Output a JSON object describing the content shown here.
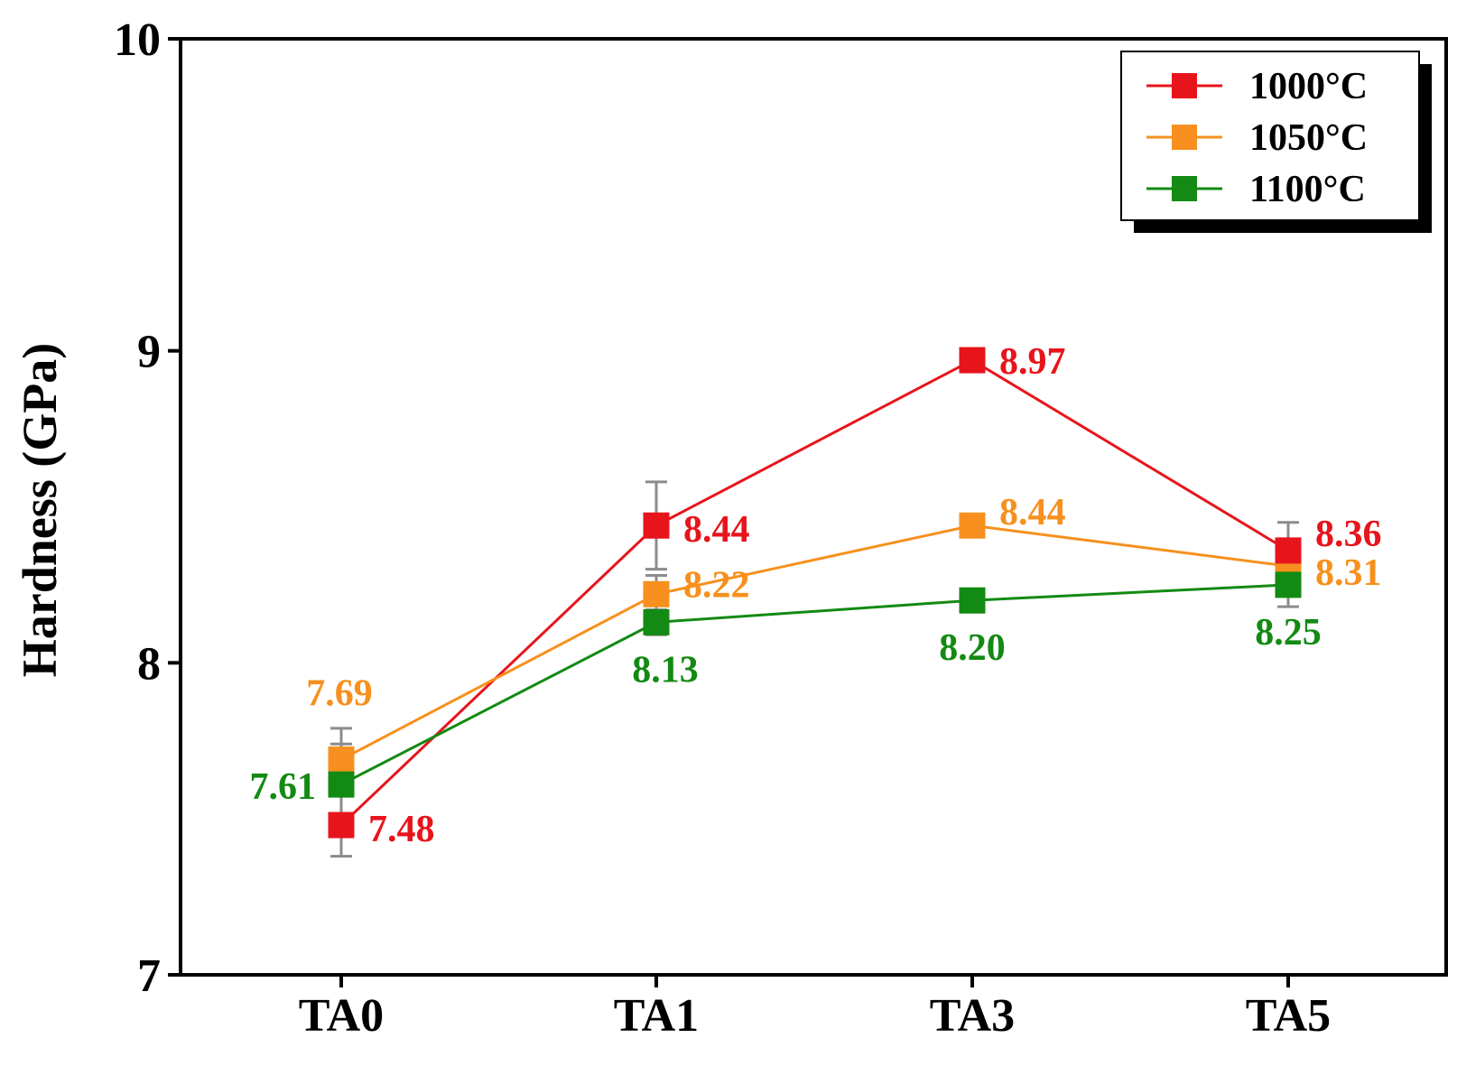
{
  "chart_data": {
    "type": "line",
    "title": "",
    "xlabel": "",
    "ylabel": "Hardness (GPa)",
    "ylim": [
      7,
      10
    ],
    "yticks": [
      "7",
      "8",
      "9",
      "10"
    ],
    "categories": [
      "TA0",
      "TA1",
      "TA3",
      "TA5"
    ],
    "grid": false,
    "legend_position": "top-right",
    "series": [
      {
        "name": "1000°C",
        "color": "#e8141c",
        "values": [
          7.48,
          8.44,
          8.97,
          8.36
        ],
        "errors": [
          0.1,
          0.14,
          0.03,
          0.09
        ],
        "labels": [
          "7.48",
          "8.44",
          "8.97",
          "8.36"
        ]
      },
      {
        "name": "1050°C",
        "color": "#f7901e",
        "values": [
          7.69,
          8.22,
          8.44,
          8.31
        ],
        "errors": [
          0.1,
          0.06,
          0.02,
          0.03
        ],
        "labels": [
          "7.69",
          "8.22",
          "8.44",
          "8.31"
        ]
      },
      {
        "name": "1100°C",
        "color": "#138a13",
        "values": [
          7.61,
          8.13,
          8.2,
          8.25
        ],
        "errors": [
          0.13,
          0.04,
          0.02,
          0.07
        ],
        "labels": [
          "7.61",
          "8.13",
          "8.20",
          "8.25"
        ]
      }
    ]
  }
}
